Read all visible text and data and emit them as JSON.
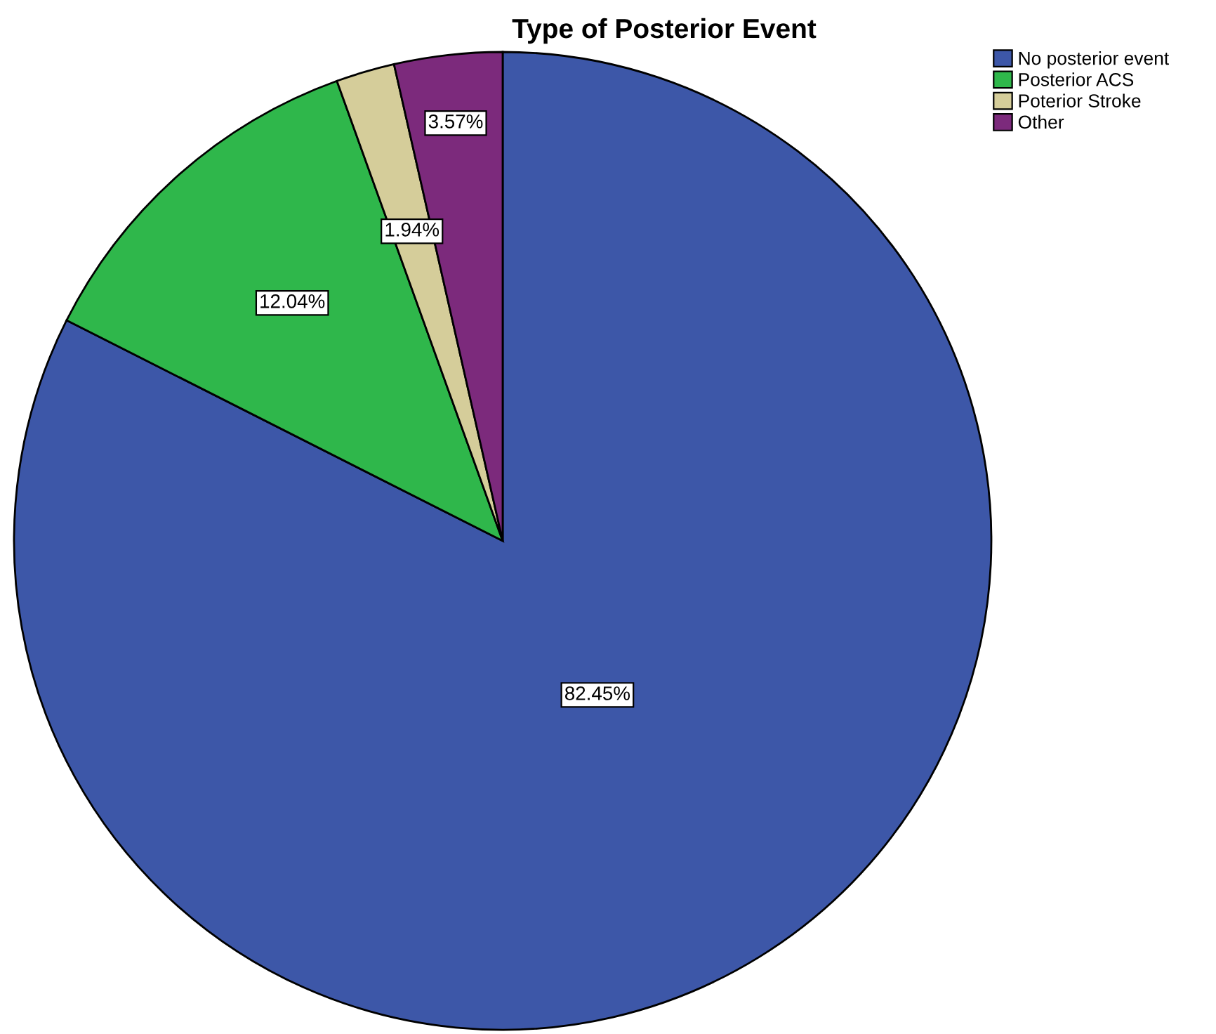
{
  "chart_data": {
    "type": "pie",
    "title": "Type of Posterior Event",
    "categories": [
      "No posterior event",
      "Posterior ACS",
      "Poterior Stroke",
      "Other"
    ],
    "values": [
      82.45,
      12.04,
      1.94,
      3.57
    ],
    "colors": [
      "#3d57a8",
      "#2fb74b",
      "#d5cd9a",
      "#7c2a7c"
    ],
    "value_labels": [
      "82.45%",
      "12.04%",
      "1.94%",
      "3.57%"
    ],
    "legend": "top right"
  }
}
